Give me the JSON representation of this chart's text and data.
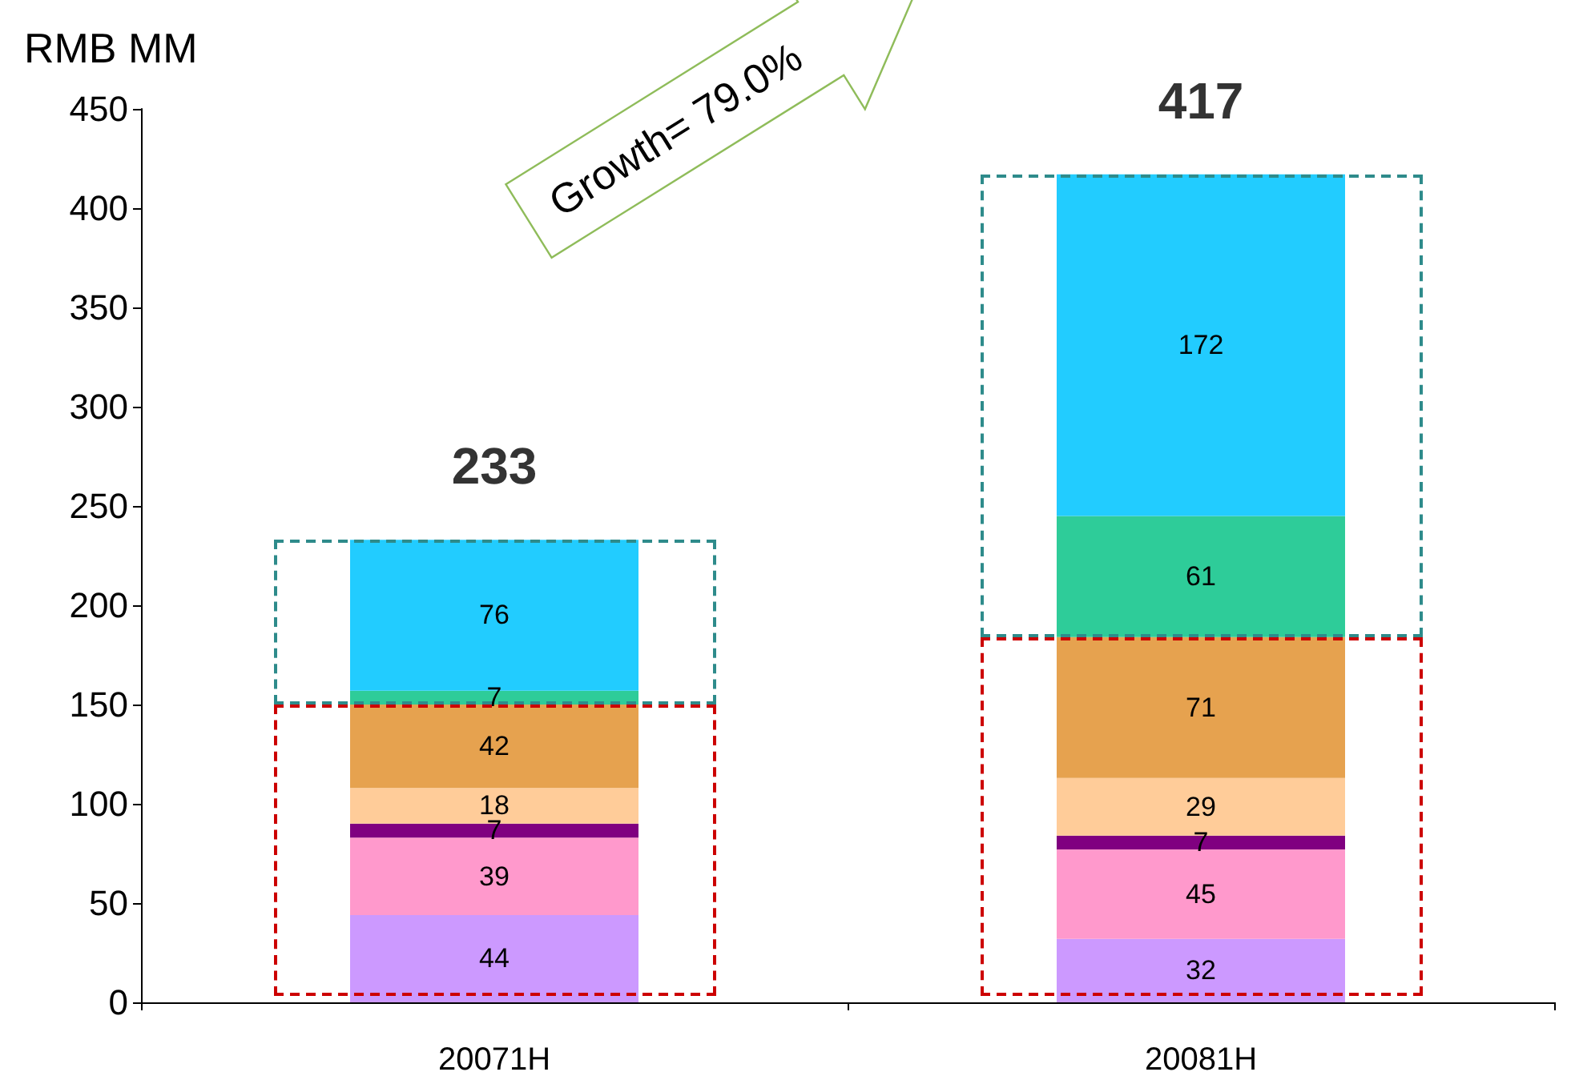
{
  "chart_data": {
    "type": "bar",
    "stacked": true,
    "ylabel": "RMB MM",
    "categories": [
      "20071H",
      "20081H"
    ],
    "series": [
      {
        "color": "#cc99ff",
        "values": [
          44,
          32
        ]
      },
      {
        "color": "#ff99cc",
        "values": [
          39,
          45
        ]
      },
      {
        "color": "#800080",
        "values": [
          7,
          7
        ]
      },
      {
        "color": "#ffcc99",
        "values": [
          18,
          29
        ]
      },
      {
        "color": "#e6a24f",
        "values": [
          42,
          71
        ]
      },
      {
        "color": "#2ecc99",
        "values": [
          7,
          61
        ]
      },
      {
        "color": "#22ccff",
        "values": [
          76,
          172
        ]
      }
    ],
    "ylim": [
      0,
      450
    ],
    "yticks": [
      0,
      50,
      100,
      150,
      200,
      250,
      300,
      350,
      400,
      450
    ],
    "grid": false,
    "data_labels": true,
    "totals": [
      "233",
      "417"
    ],
    "annotations": [
      "Growth= 79.0%"
    ]
  }
}
